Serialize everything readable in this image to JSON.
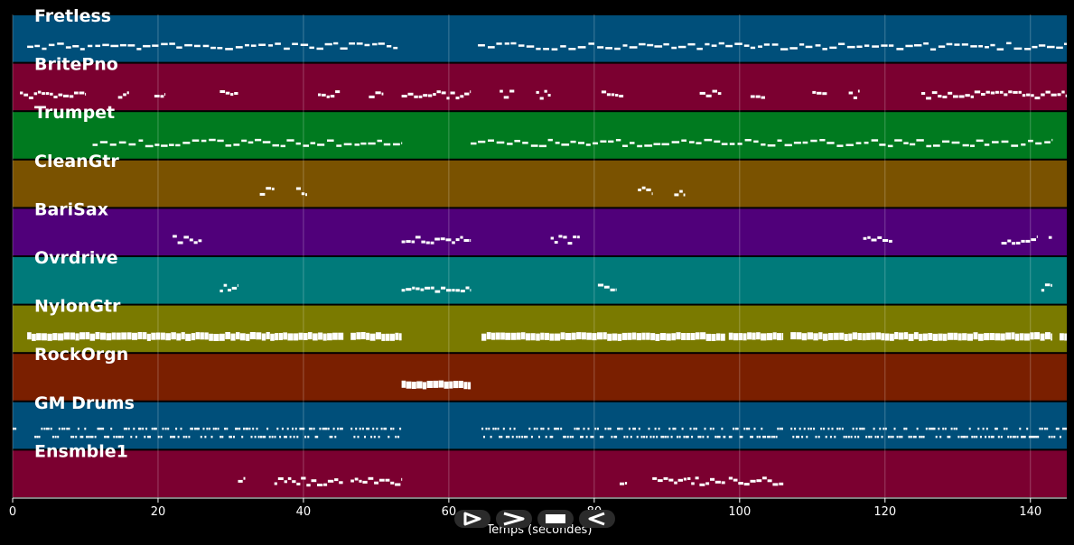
{
  "timeline": {
    "x_ticks": [
      0,
      20,
      40,
      60,
      80,
      100,
      120,
      140
    ],
    "x_max": 145,
    "x_label": "Temps (secondes)"
  },
  "tracks": [
    {
      "name": "Fretless",
      "color": "#004f7a",
      "style": "dense",
      "segments": [
        [
          2,
          53
        ],
        [
          64,
          145
        ]
      ]
    },
    {
      "name": "BritePno",
      "color": "#7b0030",
      "style": "blocks",
      "segments": [
        [
          1,
          10
        ],
        [
          14.5,
          16
        ],
        [
          19.5,
          21
        ],
        [
          28.5,
          31
        ],
        [
          42,
          45
        ],
        [
          49,
          51
        ],
        [
          53.5,
          63
        ],
        [
          67,
          69
        ],
        [
          72,
          74
        ],
        [
          81,
          84
        ],
        [
          94.5,
          97.5
        ],
        [
          101.5,
          103.5
        ],
        [
          110,
          112
        ],
        [
          115,
          116.5
        ],
        [
          125,
          145
        ]
      ]
    },
    {
      "name": "Trumpet",
      "color": "#007a1f",
      "style": "dense",
      "segments": [
        [
          11,
          53.5
        ],
        [
          63,
          143
        ]
      ]
    },
    {
      "name": "CleanGtr",
      "color": "#7a5200",
      "style": "blocks",
      "segments": [
        [
          34,
          36
        ],
        [
          39,
          40.5
        ],
        [
          86,
          88
        ],
        [
          91,
          92.5
        ]
      ]
    },
    {
      "name": "BariSax",
      "color": "#50007a",
      "style": "blocks",
      "segments": [
        [
          22,
          26
        ],
        [
          53.5,
          63
        ],
        [
          74,
          78
        ],
        [
          117,
          121
        ],
        [
          136,
          141
        ],
        [
          142.5,
          143
        ]
      ]
    },
    {
      "name": "Ovrdrive",
      "color": "#007a7a",
      "style": "blocks",
      "segments": [
        [
          28.5,
          31
        ],
        [
          53.5,
          63
        ],
        [
          80.5,
          83
        ],
        [
          141.5,
          143
        ]
      ]
    },
    {
      "name": "NylonGtr",
      "color": "#7a7a00",
      "style": "thick",
      "segments": [
        [
          2,
          45.5
        ],
        [
          46.5,
          53.5
        ],
        [
          64.5,
          98
        ],
        [
          98.5,
          106
        ],
        [
          107,
          143
        ],
        [
          144,
          145
        ]
      ]
    },
    {
      "name": "RockOrgn",
      "color": "#7a1f00",
      "style": "thick",
      "segments": [
        [
          53.5,
          63
        ]
      ]
    },
    {
      "name": "GM Drums",
      "color": "#004f7a",
      "style": "drums",
      "segments": [
        [
          0,
          0.5
        ],
        [
          3,
          45.5
        ],
        [
          46.5,
          53.5
        ],
        [
          64.5,
          98
        ],
        [
          98.5,
          106
        ],
        [
          107,
          145
        ]
      ]
    },
    {
      "name": "Ensmble1",
      "color": "#7b0030",
      "style": "blocks",
      "segments": [
        [
          31,
          32
        ],
        [
          36,
          45.5
        ],
        [
          46.5,
          53.5
        ],
        [
          83.5,
          84.5
        ],
        [
          88,
          98
        ],
        [
          98.5,
          106
        ]
      ]
    }
  ],
  "playback": {
    "buttons": [
      {
        "id": "play",
        "icon": "play-icon"
      },
      {
        "id": "fast-forward",
        "icon": "fast-forward-icon"
      },
      {
        "id": "stop",
        "icon": "stop-icon"
      },
      {
        "id": "rewind",
        "icon": "rewind-icon"
      }
    ]
  }
}
